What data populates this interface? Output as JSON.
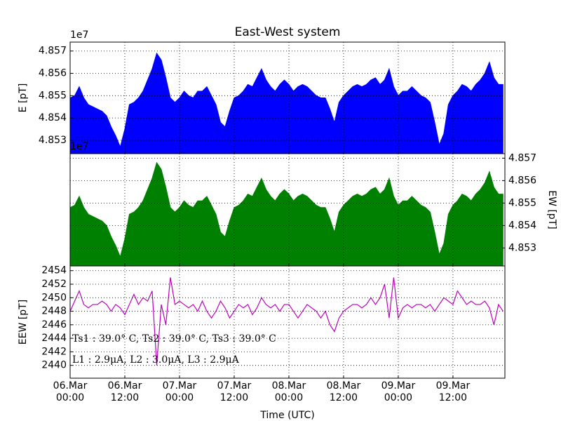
{
  "chart_data": [
    {
      "type": "area",
      "title": "East-West system",
      "ylabel": "E [pT]",
      "offset_text": "1e7",
      "color": "#0000ff",
      "grid": true,
      "tick_side": "left",
      "x": [
        0,
        1,
        2,
        3,
        4,
        5,
        6,
        7,
        8,
        9,
        10,
        11,
        12,
        13,
        14,
        15,
        16,
        17,
        18,
        19,
        20,
        21,
        22,
        23,
        24,
        25,
        26,
        27,
        28,
        29,
        30,
        31,
        32,
        33,
        34,
        35,
        36,
        37,
        38,
        39,
        40,
        41,
        42,
        43,
        44,
        45,
        46,
        47,
        48,
        49,
        50,
        51,
        52,
        53,
        54,
        55,
        56,
        57,
        58,
        59,
        60,
        61,
        62,
        63,
        64,
        65,
        66,
        67,
        68,
        69,
        70,
        71,
        72,
        73,
        74,
        75,
        76,
        77,
        78,
        79,
        80,
        81,
        82,
        83,
        84,
        85,
        86,
        87,
        88,
        89,
        90,
        91,
        92,
        93,
        94,
        95
      ],
      "values": [
        4.8549,
        4.855,
        4.8554,
        4.8549,
        4.8546,
        4.8545,
        4.8544,
        4.8543,
        4.8541,
        4.8536,
        4.8532,
        4.8527,
        4.8535,
        4.8546,
        4.8547,
        4.8549,
        4.8552,
        4.8557,
        4.8562,
        4.8569,
        4.8566,
        4.8558,
        4.8549,
        4.8547,
        4.8549,
        4.8552,
        4.855,
        4.8549,
        4.8552,
        4.8552,
        4.8554,
        4.855,
        4.8546,
        4.8538,
        4.8536,
        4.8543,
        4.8549,
        4.855,
        4.8552,
        4.8555,
        4.8554,
        4.8558,
        4.8562,
        4.8557,
        4.8554,
        4.8552,
        4.8555,
        4.8557,
        4.8555,
        4.8552,
        4.8554,
        4.8555,
        4.8554,
        4.8552,
        4.855,
        4.8549,
        4.8549,
        4.8544,
        4.8538,
        4.8547,
        4.855,
        4.8552,
        4.8554,
        4.8555,
        4.8554,
        4.8555,
        4.8557,
        4.8558,
        4.8555,
        4.8557,
        4.8562,
        4.8554,
        4.855,
        4.8552,
        4.8552,
        4.8554,
        4.8552,
        4.855,
        4.8549,
        4.8547,
        4.8538,
        4.8528,
        4.8533,
        4.8546,
        4.855,
        4.8552,
        4.8555,
        4.8554,
        4.8552,
        4.8555,
        4.8557,
        4.856,
        4.8565,
        4.8558,
        4.8555,
        4.8555
      ],
      "xlim": [
        0,
        95.4
      ],
      "ylim": [
        4.8524,
        4.8574
      ],
      "yticks": [
        4.853,
        4.854,
        4.855,
        4.856,
        4.857
      ]
    },
    {
      "type": "area",
      "ylabel": "EW [pT]",
      "offset_text": "1e7",
      "color": "#008000",
      "grid": true,
      "tick_side": "right",
      "x": [
        0,
        1,
        2,
        3,
        4,
        5,
        6,
        7,
        8,
        9,
        10,
        11,
        12,
        13,
        14,
        15,
        16,
        17,
        18,
        19,
        20,
        21,
        22,
        23,
        24,
        25,
        26,
        27,
        28,
        29,
        30,
        31,
        32,
        33,
        34,
        35,
        36,
        37,
        38,
        39,
        40,
        41,
        42,
        43,
        44,
        45,
        46,
        47,
        48,
        49,
        50,
        51,
        52,
        53,
        54,
        55,
        56,
        57,
        58,
        59,
        60,
        61,
        62,
        63,
        64,
        65,
        66,
        67,
        68,
        69,
        70,
        71,
        72,
        73,
        74,
        75,
        76,
        77,
        78,
        79,
        80,
        81,
        82,
        83,
        84,
        85,
        86,
        87,
        88,
        89,
        90,
        91,
        92,
        93,
        94,
        95
      ],
      "values": [
        4.8548,
        4.8549,
        4.8553,
        4.8548,
        4.8545,
        4.8544,
        4.8543,
        4.8542,
        4.854,
        4.8535,
        4.8531,
        4.8526,
        4.8534,
        4.8545,
        4.8546,
        4.8548,
        4.8551,
        4.8556,
        4.8561,
        4.8568,
        4.8565,
        4.8557,
        4.8548,
        4.8546,
        4.8548,
        4.8551,
        4.8549,
        4.8548,
        4.8551,
        4.8551,
        4.8553,
        4.8549,
        4.8545,
        4.8537,
        4.8535,
        4.8542,
        4.8548,
        4.8549,
        4.8551,
        4.8554,
        4.8553,
        4.8557,
        4.8561,
        4.8556,
        4.8553,
        4.8551,
        4.8554,
        4.8556,
        4.8554,
        4.8551,
        4.8553,
        4.8554,
        4.8553,
        4.8551,
        4.8549,
        4.8548,
        4.8548,
        4.8543,
        4.8537,
        4.8546,
        4.8549,
        4.8551,
        4.8553,
        4.8554,
        4.8553,
        4.8554,
        4.8556,
        4.8557,
        4.8554,
        4.8556,
        4.8561,
        4.8553,
        4.8549,
        4.8551,
        4.8551,
        4.8553,
        4.8551,
        4.8549,
        4.8548,
        4.8546,
        4.8537,
        4.8527,
        4.8532,
        4.8545,
        4.8549,
        4.8551,
        4.8554,
        4.8553,
        4.8551,
        4.8554,
        4.8556,
        4.8559,
        4.8564,
        4.8557,
        4.8554,
        4.8554
      ],
      "xlim": [
        0,
        95.4
      ],
      "ylim": [
        4.8522,
        4.8572
      ],
      "yticks": [
        4.853,
        4.854,
        4.855,
        4.856,
        4.857
      ]
    },
    {
      "type": "line",
      "ylabel": "EEW [pT]",
      "xlabel": "Time (UTC)",
      "color": "#bf00bf",
      "grid": true,
      "tick_side": "left",
      "annotations": [
        "Ts1 : 39.0° C, Ts2 : 39.0° C, Ts3 : 39.0° C",
        "L1 : 2.9μA, L2 : 3.0μA, L3 : 2.9μA"
      ],
      "x": [
        0,
        1,
        2,
        3,
        4,
        5,
        6,
        7,
        8,
        9,
        10,
        11,
        12,
        13,
        14,
        15,
        16,
        17,
        18,
        19,
        20,
        21,
        22,
        23,
        24,
        25,
        26,
        27,
        28,
        29,
        30,
        31,
        32,
        33,
        34,
        35,
        36,
        37,
        38,
        39,
        40,
        41,
        42,
        43,
        44,
        45,
        46,
        47,
        48,
        49,
        50,
        51,
        52,
        53,
        54,
        55,
        56,
        57,
        58,
        59,
        60,
        61,
        62,
        63,
        64,
        65,
        66,
        67,
        68,
        69,
        70,
        71,
        72,
        73,
        74,
        75,
        76,
        77,
        78,
        79,
        80,
        81,
        82,
        83,
        84,
        85,
        86,
        87,
        88,
        89,
        90,
        91,
        92,
        93,
        94,
        95
      ],
      "values": [
        2448,
        2449.5,
        2451,
        2449,
        2448.5,
        2449,
        2449,
        2449.5,
        2449,
        2448,
        2449,
        2448.5,
        2447.5,
        2449,
        2450.5,
        2449,
        2450,
        2449.5,
        2451,
        2440,
        2449,
        2446,
        2453,
        2449,
        2449.5,
        2449,
        2448.5,
        2449,
        2448,
        2449.5,
        2448,
        2447,
        2448,
        2449.5,
        2448.5,
        2447,
        2448,
        2449,
        2448.5,
        2449,
        2447.5,
        2448.5,
        2450,
        2449,
        2448.5,
        2449,
        2448,
        2449,
        2449,
        2448,
        2447,
        2448,
        2449,
        2448.5,
        2448,
        2447,
        2448,
        2446,
        2445,
        2447,
        2448,
        2448.5,
        2449,
        2449,
        2448.5,
        2449,
        2450,
        2449,
        2450,
        2452,
        2447,
        2453,
        2447,
        2448.5,
        2449,
        2448.5,
        2449,
        2449,
        2448.5,
        2449,
        2448,
        2449,
        2450,
        2449.5,
        2449,
        2451,
        2450,
        2449,
        2449.5,
        2449,
        2449,
        2449.5,
        2448.5,
        2446,
        2449,
        2448
      ],
      "xlim": [
        0,
        95.4
      ],
      "ylim": [
        2438.1,
        2454.7
      ],
      "yticks": [
        2440,
        2442,
        2444,
        2446,
        2448,
        2450,
        2452,
        2454
      ],
      "xticks": [
        {
          "value": 0,
          "label": "06.Mar\n00:00"
        },
        {
          "value": 12,
          "label": "06.Mar\n12:00"
        },
        {
          "value": 24,
          "label": "07.Mar\n00:00"
        },
        {
          "value": 36,
          "label": "07.Mar\n12:00"
        },
        {
          "value": 48,
          "label": "08.Mar\n00:00"
        },
        {
          "value": 60,
          "label": "08.Mar\n12:00"
        },
        {
          "value": 72,
          "label": "09.Mar\n00:00"
        },
        {
          "value": 84,
          "label": "09.Mar\n12:00"
        }
      ]
    }
  ]
}
